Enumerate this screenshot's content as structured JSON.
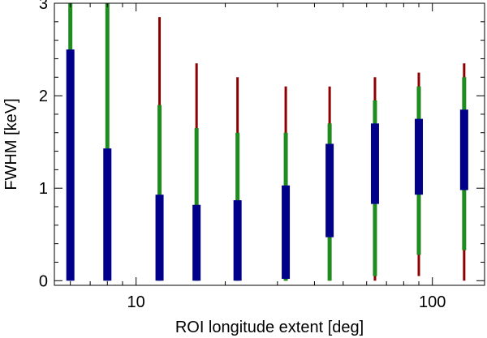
{
  "chart_data": {
    "type": "bar",
    "title": "",
    "xlabel": "ROI longitude extent [deg]",
    "ylabel": "FWHM [keV]",
    "x_scale": "log",
    "xlim": [
      5.3,
      150
    ],
    "ylim": [
      -0.05,
      3.0
    ],
    "x_ticks": [
      {
        "value": 10,
        "label": "10"
      },
      {
        "value": 100,
        "label": "100"
      }
    ],
    "y_ticks": [
      {
        "value": 0,
        "label": "0"
      },
      {
        "value": 1,
        "label": "1"
      },
      {
        "value": 2,
        "label": "2"
      },
      {
        "value": 3,
        "label": "3"
      }
    ],
    "grid": false,
    "colors": {
      "outer": "#8b0000",
      "middle": "#1e8c1e",
      "inner": "#00008b"
    },
    "series": [
      {
        "x": 6,
        "outer": [
          0,
          3.0
        ],
        "middle": [
          0,
          3.0
        ],
        "inner": [
          0,
          2.5
        ]
      },
      {
        "x": 8,
        "outer": [
          0,
          3.0
        ],
        "middle": [
          0,
          3.0
        ],
        "inner": [
          0,
          1.43
        ]
      },
      {
        "x": 12,
        "outer": [
          0,
          2.85
        ],
        "middle": [
          0,
          1.9
        ],
        "inner": [
          0,
          0.93
        ]
      },
      {
        "x": 16,
        "outer": [
          0,
          2.35
        ],
        "middle": [
          0,
          1.65
        ],
        "inner": [
          0,
          0.82
        ]
      },
      {
        "x": 22,
        "outer": [
          0,
          2.2
        ],
        "middle": [
          0,
          1.6
        ],
        "inner": [
          0,
          0.87
        ]
      },
      {
        "x": 32,
        "outer": [
          0,
          2.1
        ],
        "middle": [
          0,
          1.6
        ],
        "inner": [
          0.02,
          1.03
        ]
      },
      {
        "x": 45,
        "outer": [
          0,
          2.1
        ],
        "middle": [
          0,
          1.7
        ],
        "inner": [
          0.47,
          1.48
        ]
      },
      {
        "x": 64,
        "outer": [
          0,
          2.2
        ],
        "middle": [
          0.05,
          1.95
        ],
        "inner": [
          0.83,
          1.7
        ]
      },
      {
        "x": 90,
        "outer": [
          0.05,
          2.25
        ],
        "middle": [
          0.28,
          2.1
        ],
        "inner": [
          0.93,
          1.75
        ]
      },
      {
        "x": 128,
        "outer": [
          0,
          2.35
        ],
        "middle": [
          0.33,
          2.2
        ],
        "inner": [
          0.98,
          1.85
        ]
      }
    ]
  }
}
